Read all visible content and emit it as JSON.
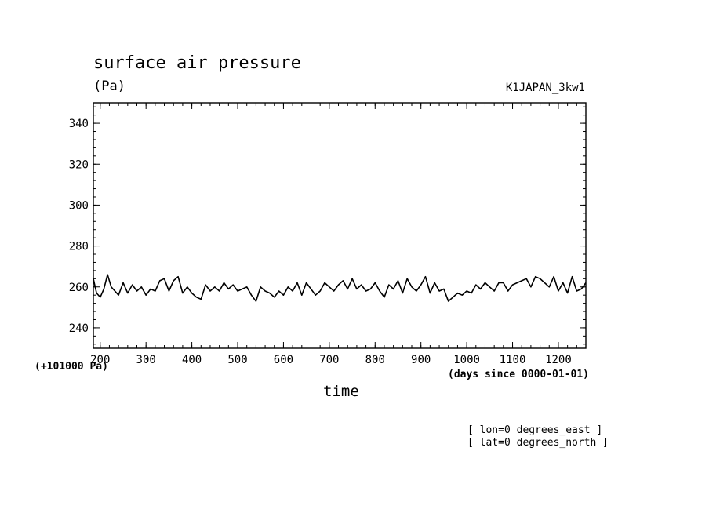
{
  "title": "surface air pressure",
  "units": "(Pa)",
  "run_name": "K1JAPAN_3kw1",
  "y_offset_label": "(+101000 Pa)",
  "x_units_label": "(days since 0000-01-01)",
  "notes": [
    "[ lon=0 degrees_east ]",
    "[ lat=0 degrees_north ]"
  ],
  "chart_data": {
    "type": "line",
    "title": "surface air pressure",
    "xlabel": "time",
    "ylabel": "(Pa)",
    "xlim": [
      185,
      1260
    ],
    "ylim": [
      230,
      350
    ],
    "xticks": [
      200,
      300,
      400,
      500,
      600,
      700,
      800,
      900,
      1000,
      1100,
      1200
    ],
    "yticks": [
      240,
      260,
      280,
      300,
      320,
      340
    ],
    "grid": false,
    "series": [
      {
        "color": "#000000",
        "x": [
          185,
          192,
          200,
          208,
          216,
          224,
          232,
          240,
          250,
          260,
          270,
          280,
          290,
          300,
          310,
          320,
          330,
          340,
          350,
          360,
          370,
          380,
          390,
          400,
          410,
          420,
          430,
          440,
          450,
          460,
          470,
          480,
          490,
          500,
          510,
          520,
          530,
          540,
          550,
          560,
          570,
          580,
          590,
          600,
          610,
          620,
          630,
          640,
          650,
          660,
          670,
          680,
          690,
          700,
          710,
          720,
          730,
          740,
          750,
          760,
          770,
          780,
          790,
          800,
          810,
          820,
          830,
          840,
          850,
          860,
          870,
          880,
          890,
          900,
          910,
          920,
          930,
          940,
          950,
          960,
          970,
          980,
          990,
          1000,
          1010,
          1020,
          1030,
          1040,
          1050,
          1060,
          1070,
          1080,
          1090,
          1100,
          1110,
          1120,
          1130,
          1140,
          1150,
          1160,
          1170,
          1180,
          1190,
          1200,
          1210,
          1220,
          1230,
          1240,
          1250,
          1260
        ],
        "y": [
          264,
          257,
          255,
          259,
          266,
          260,
          258,
          256,
          262,
          257,
          261,
          258,
          260,
          256,
          259,
          258,
          263,
          264,
          258,
          263,
          265,
          257,
          260,
          257,
          255,
          254,
          261,
          258,
          260,
          258,
          262,
          259,
          261,
          258,
          259,
          260,
          256,
          253,
          260,
          258,
          257,
          255,
          258,
          256,
          260,
          258,
          262,
          256,
          262,
          259,
          256,
          258,
          262,
          260,
          258,
          261,
          263,
          259,
          264,
          259,
          261,
          258,
          259,
          262,
          258,
          255,
          261,
          259,
          263,
          257,
          264,
          260,
          258,
          261,
          265,
          257,
          262,
          258,
          259,
          253,
          255,
          257,
          256,
          258,
          257,
          261,
          259,
          262,
          260,
          258,
          262,
          262,
          258,
          261,
          262,
          263,
          264,
          260,
          265,
          264,
          262,
          260,
          265,
          258,
          262,
          257,
          265,
          258,
          259,
          262
        ]
      }
    ]
  }
}
